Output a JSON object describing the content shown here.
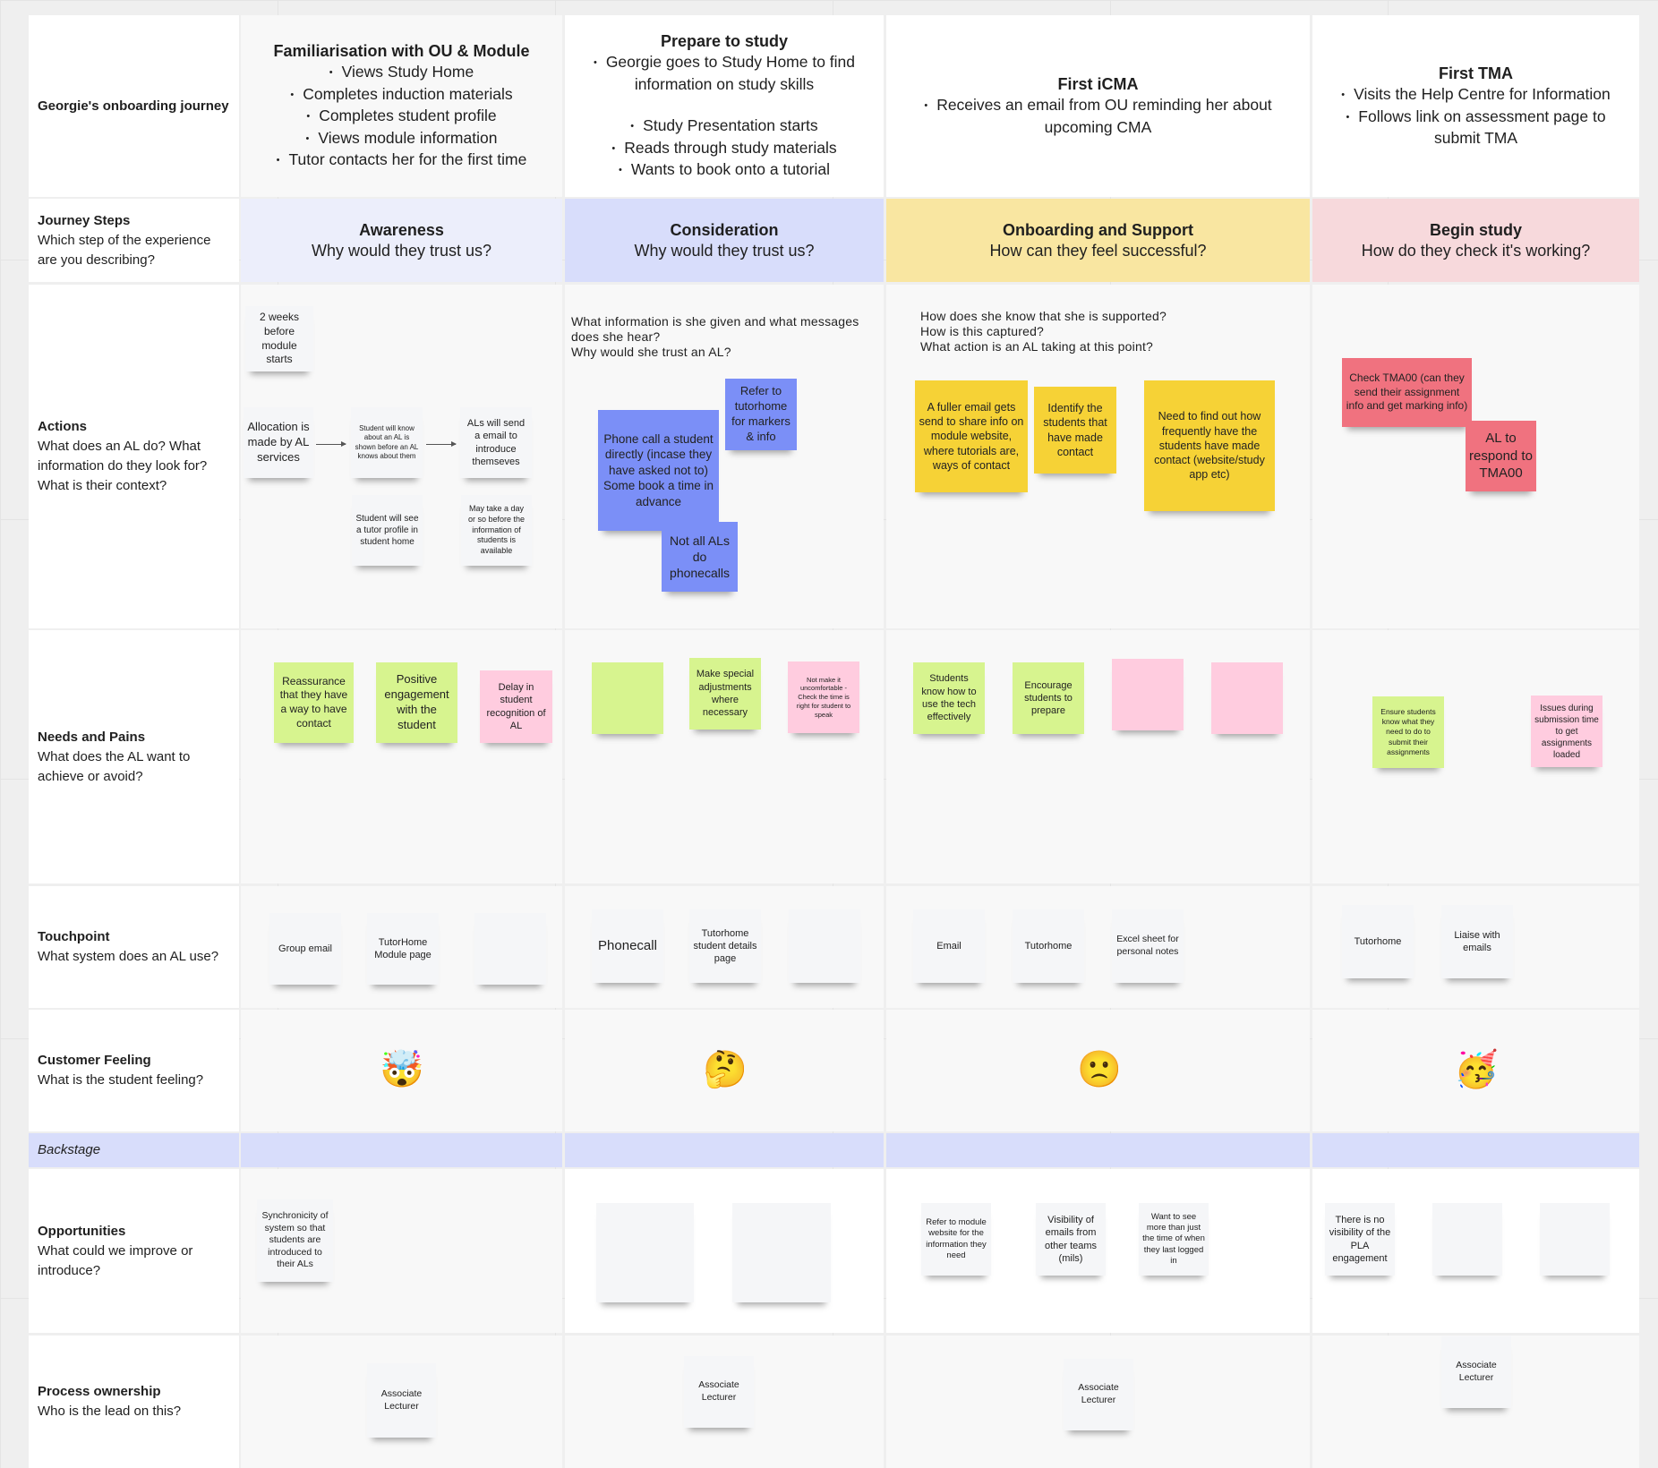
{
  "palette": {
    "white": "#f5f6f8",
    "blue": "#7b8ff7",
    "yellow": "#f6d236",
    "red": "#f0727f",
    "green": "#d7f48f",
    "pink": "#ffccdf"
  },
  "row_labels": {
    "journey": {
      "title": "Georgie's onboarding journey"
    },
    "steps": {
      "title": "Journey Steps",
      "sub": "Which step of the experience are you describing?"
    },
    "actions": {
      "title": "Actions",
      "sub": "What does an AL do? What information do they look for? What is their context?"
    },
    "needs": {
      "title": "Needs and Pains",
      "sub": "What does the AL want to achieve or avoid?"
    },
    "touchpoint": {
      "title": "Touchpoint",
      "sub": "What system does an AL use?"
    },
    "feeling": {
      "title": "Customer Feeling",
      "sub": "What is the student feeling?"
    },
    "backstage": {
      "title": "Backstage"
    },
    "opportunities": {
      "title": "Opportunities",
      "sub": "What could we improve or introduce?"
    },
    "process": {
      "title": "Process ownership",
      "sub": "Who is the lead on this?"
    }
  },
  "phases": [
    {
      "title": "Familiarisation with OU & Module",
      "items": [
        "Views Study Home",
        "Completes induction materials",
        "Completes student profile",
        "Views module information",
        "Tutor contacts her for the first time"
      ]
    },
    {
      "title": "Prepare to study",
      "items": [
        "Georgie goes to Study Home to find information on study skills",
        "",
        "Study Presentation starts",
        "Reads through study materials",
        "Wants to book onto a tutorial"
      ]
    },
    {
      "title": "First iCMA",
      "items": [
        "Receives an email from OU reminding her about upcoming CMA"
      ]
    },
    {
      "title": "First  TMA",
      "items": [
        "Visits the Help Centre for Information",
        "Follows link on assessment page to submit TMA"
      ]
    }
  ],
  "stages": [
    {
      "title": "Awareness",
      "question": "Why would they trust us?",
      "color": "#eceefb"
    },
    {
      "title": "Consideration",
      "question": "Why would they trust us?",
      "color": "#d8ddfb"
    },
    {
      "title": "Onboarding and Support",
      "question": "How can they feel successful?",
      "color": "#f9e6a1"
    },
    {
      "title": "Begin study",
      "question": "How do they check it's working?",
      "color": "#f7d9dc"
    }
  ],
  "questions": {
    "consideration": "What information is she given and what messages\ndoes she hear?\nWhy would she trust an AL?",
    "onboarding": "How does she know that she is supported?\nHow is this captured?\nWhat action is an AL taking at this point?"
  },
  "notes": {
    "actions": [
      {
        "text": "2 weeks before module starts",
        "color": "white"
      },
      {
        "text": "Allocation is made by AL services",
        "color": "white"
      },
      {
        "text": "Student will know about an AL is shown before an AL knows about them",
        "color": "white"
      },
      {
        "text": "ALs will send a email to introduce themseves",
        "color": "white"
      },
      {
        "text": "Student will see a tutor profile in student home",
        "color": "white"
      },
      {
        "text": "May take a day or so before the information of students is available",
        "color": "white"
      },
      {
        "text": "Refer to tutorhome for markers & info",
        "color": "blue"
      },
      {
        "text": "Phone call a student directly (incase they have asked not to) Some book a time in advance",
        "color": "blue"
      },
      {
        "text": "Not all ALs do phonecalls",
        "color": "blue"
      },
      {
        "text": "A fuller email gets send to share info on module website, where tutorials are, ways of contact",
        "color": "yellow"
      },
      {
        "text": "Identify the students that have made contact",
        "color": "yellow"
      },
      {
        "text": "Need to find out how frequently have the students have made contact (website/study app etc)",
        "color": "yellow"
      },
      {
        "text": "Check TMA00 (can they send their assignment info and get marking info)",
        "color": "red"
      },
      {
        "text": "AL to respond to TMA00",
        "color": "red"
      }
    ],
    "needs": [
      {
        "text": "Reassurance that they have a way to have contact",
        "color": "green"
      },
      {
        "text": "Positive engagement with the student",
        "color": "green"
      },
      {
        "text": "Delay in student recognition of AL",
        "color": "pink"
      },
      {
        "text": "",
        "color": "green"
      },
      {
        "text": "Make special adjustments where necessary",
        "color": "green"
      },
      {
        "text": "Not make it uncomfortable - Check the time is right for student to speak",
        "color": "pink"
      },
      {
        "text": "Students know how to use the tech effectively",
        "color": "green"
      },
      {
        "text": "Encourage students to prepare",
        "color": "green"
      },
      {
        "text": "",
        "color": "pink"
      },
      {
        "text": "",
        "color": "pink"
      },
      {
        "text": "Ensure students know what they need to do to submit their assignments",
        "color": "green"
      },
      {
        "text": "Issues during submission time to get assignments loaded",
        "color": "pink"
      }
    ],
    "touchpoint": [
      {
        "text": "Group email",
        "color": "white"
      },
      {
        "text": "TutorHome Module page",
        "color": "white"
      },
      {
        "text": "",
        "color": "white"
      },
      {
        "text": "Phonecall",
        "color": "white"
      },
      {
        "text": "Tutorhome student details page",
        "color": "white"
      },
      {
        "text": "",
        "color": "white"
      },
      {
        "text": "Email",
        "color": "white"
      },
      {
        "text": "Tutorhome",
        "color": "white"
      },
      {
        "text": "Excel sheet for personal notes",
        "color": "white"
      },
      {
        "text": "Tutorhome",
        "color": "white"
      },
      {
        "text": "Liaise with emails",
        "color": "white"
      }
    ],
    "opportunities": [
      {
        "text": "Synchronicity of system so that students are introduced to their ALs",
        "color": "white"
      },
      {
        "text": "",
        "color": "white"
      },
      {
        "text": "",
        "color": "white"
      },
      {
        "text": "Refer to module website for the information they need",
        "color": "white"
      },
      {
        "text": "Visibility of emails from other teams (mils)",
        "color": "white"
      },
      {
        "text": "Want to see more than just the time of when they last logged in",
        "color": "white"
      },
      {
        "text": "There is no visibility of the PLA engagement",
        "color": "white"
      },
      {
        "text": "",
        "color": "white"
      },
      {
        "text": "",
        "color": "white"
      }
    ],
    "process": [
      {
        "text": "Associate Lecturer",
        "color": "white"
      },
      {
        "text": "Associate Lecturer",
        "color": "white"
      },
      {
        "text": "Associate Lecturer",
        "color": "white"
      },
      {
        "text": "Associate Lecturer",
        "color": "white"
      }
    ]
  },
  "feelings": [
    {
      "emoji": "🤯",
      "icon": "mind-blown-emoji"
    },
    {
      "emoji": "🤔",
      "icon": "thinking-face-emoji"
    },
    {
      "emoji": "🙁",
      "icon": "slightly-frowning-face-emoji"
    },
    {
      "emoji": "🥳",
      "icon": "partying-face-emoji"
    }
  ]
}
